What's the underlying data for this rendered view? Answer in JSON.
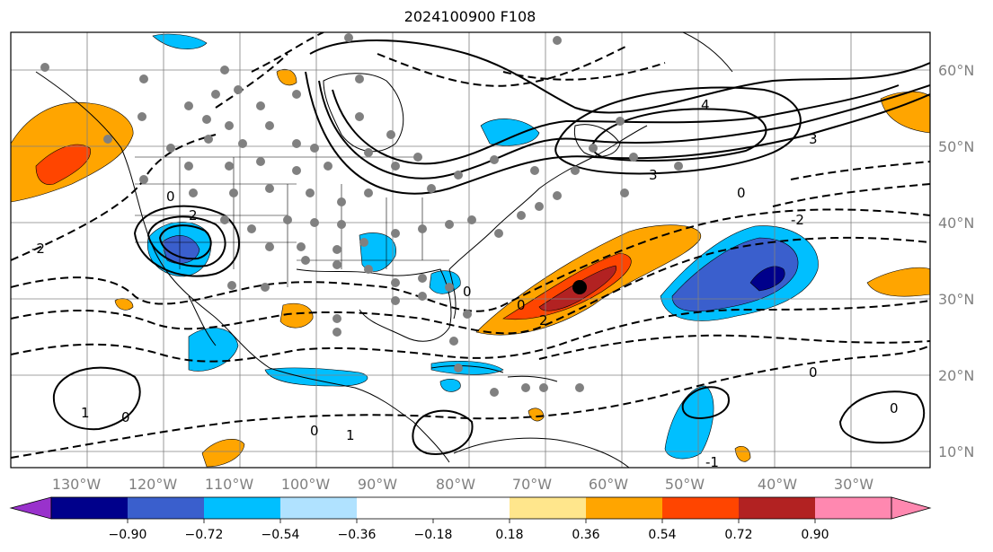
{
  "title": "2024100900 F108",
  "longitude_labels": [
    "130°W",
    "120°W",
    "110°W",
    "100°W",
    "90°W",
    "80°W",
    "70°W",
    "60°W",
    "50°W",
    "40°W",
    "30°W"
  ],
  "latitude_labels": [
    "60°N",
    "50°N",
    "40°N",
    "30°N",
    "20°N",
    "10°N"
  ],
  "colorbar": {
    "extend": "both",
    "colors": [
      "#9932cc",
      "#00008b",
      "#3a5fcd",
      "#00bfff",
      "#b0e2ff",
      "#ffffff",
      "#ffe68c",
      "#ffa500",
      "#ff4500",
      "#b22222",
      "#ff88b0"
    ],
    "tick_labels": [
      "−0.90",
      "−0.72",
      "−0.54",
      "−0.36",
      "−0.18",
      "0.18",
      "0.36",
      "0.54",
      "0.72",
      "0.90"
    ]
  },
  "contour_labels": [
    "0",
    "2",
    "4",
    "3",
    "1",
    "-2",
    "-1"
  ],
  "colors": {
    "frame": "#000000",
    "grid": "#808080",
    "station_dots": "#808080"
  }
}
